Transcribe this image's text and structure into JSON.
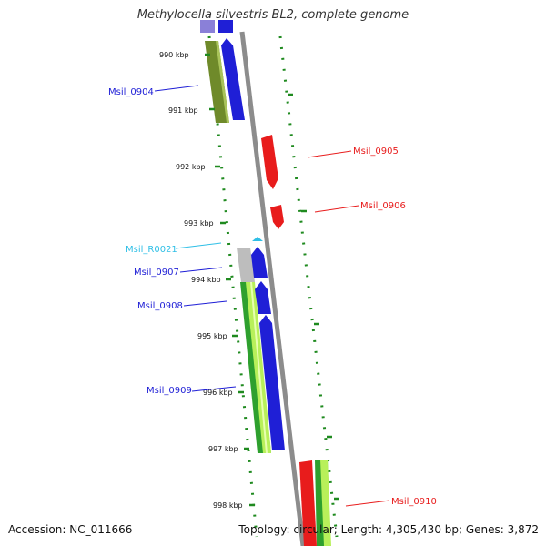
{
  "title": "Methylocella silvestris BL2, complete genome",
  "footer": {
    "accession": "Accession: NC_011666",
    "summary": "Topology: circular; Length: 4,305,430 bp; Genes: 3,872"
  },
  "colors": {
    "forward_gene": "#1f1fd6",
    "reverse_gene": "#e81c1c",
    "rna_gene": "#2fbfe6",
    "cog_olive": "#6f8a2a",
    "cog_green": "#2ea02e",
    "cog_lightgreen": "#b8f05a",
    "cog_gray": "#bdbdbd",
    "cog_purple": "#8a80d8",
    "backbone": "#8c8c8c",
    "dotted_ring": "#1f8a1f"
  },
  "ticks": [
    {
      "label": "990 kbp"
    },
    {
      "label": "991 kbp"
    },
    {
      "label": "992 kbp"
    },
    {
      "label": "993 kbp"
    },
    {
      "label": "994 kbp"
    },
    {
      "label": "995 kbp"
    },
    {
      "label": "996 kbp"
    },
    {
      "label": "997 kbp"
    },
    {
      "label": "998 kbp"
    }
  ],
  "genes": [
    {
      "name": "Msil_0904",
      "strand": "forward"
    },
    {
      "name": "Msil_0905",
      "strand": "reverse"
    },
    {
      "name": "Msil_0906",
      "strand": "reverse"
    },
    {
      "name": "Msil_R0021",
      "strand": "rna"
    },
    {
      "name": "Msil_0907",
      "strand": "forward"
    },
    {
      "name": "Msil_0908",
      "strand": "forward"
    },
    {
      "name": "Msil_0909",
      "strand": "forward"
    },
    {
      "name": "Msil_0910",
      "strand": "reverse"
    }
  ]
}
